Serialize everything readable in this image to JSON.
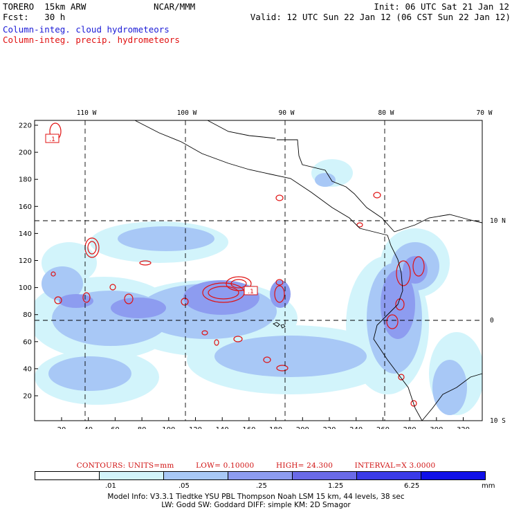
{
  "header": {
    "model": "TORERO  15km ARW",
    "org": "NCAR/MMM",
    "init": "Init: 06 UTC Sat 21 Jan 12",
    "fcst": "Fcst:   30 h",
    "valid": "Valid: 12 UTC Sun 22 Jan 12 (06 CST Sun 22 Jan 12)",
    "field_blue": "Column-integ. cloud hydrometeors",
    "field_red": "Column-integ. precip. hydrometeors"
  },
  "map": {
    "lon_labels": [
      "110 W",
      "100 W",
      "90 W",
      "80 W",
      "70 W"
    ],
    "lat_labels": [
      "10 N",
      "0",
      "10 S"
    ],
    "y_ticks": [
      "220",
      "200",
      "180",
      "160",
      "140",
      "120",
      "100",
      "80",
      "60",
      "40",
      "20"
    ],
    "x_ticks": [
      "20",
      "40",
      "60",
      "80",
      "100",
      "120",
      "140",
      "160",
      "180",
      "200",
      "220",
      "240",
      "260",
      "280",
      "300",
      "320"
    ],
    "box_labels": [
      ".1",
      ".1"
    ]
  },
  "contours": {
    "units": "CONTOURS:  UNITS=mm",
    "low": "LOW= 0.10000",
    "high": "HIGH=  24.300",
    "interval": "INTERVAL=X  3.0000"
  },
  "colorbar": {
    "labels": [
      ".01",
      ".05",
      ".25",
      "1.25",
      "6.25"
    ],
    "unit": "mm",
    "colors": [
      "#ffffff",
      "#d2f4fb",
      "#a8c8f6",
      "#8d9cf0",
      "#6a6ae8",
      "#3a3ae8",
      "#1010e8"
    ]
  },
  "footer": {
    "line1": "Model Info: V3.3.1   Tiedtke YSU PBL  Thompson   Noah LSM  15 km,   44 levels,   38 sec",
    "line2": "LW: Godd SW: Goddard DIFF: simple KM: 2D Smagor"
  }
}
